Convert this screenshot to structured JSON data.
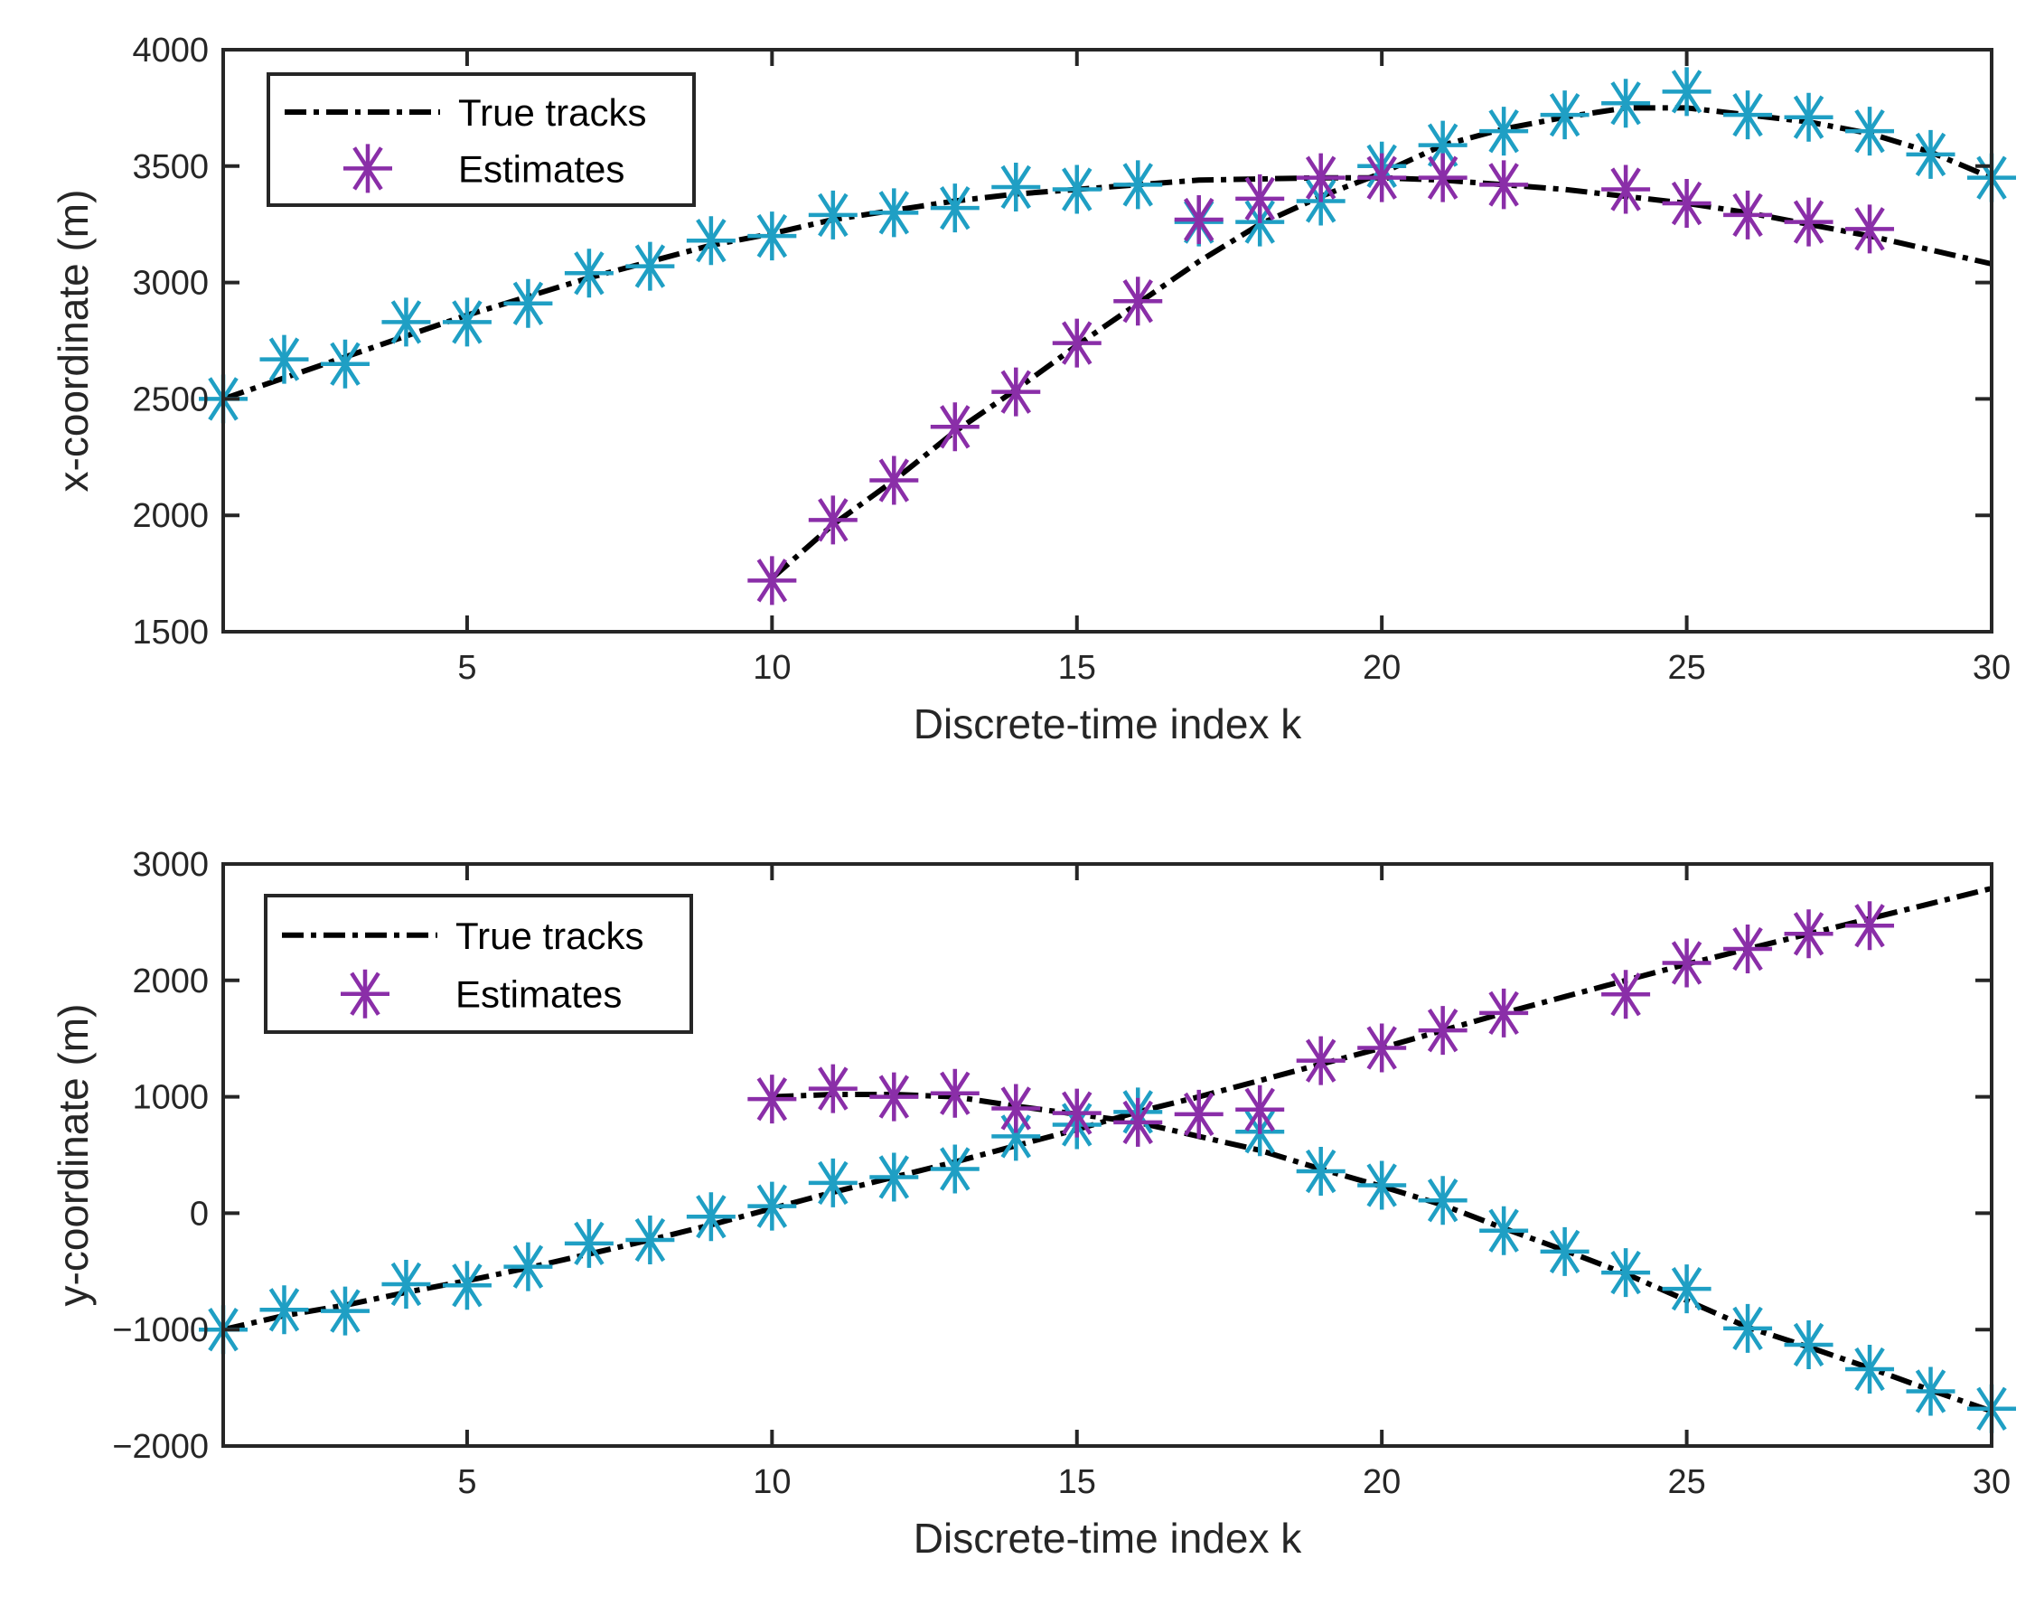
{
  "chart_data": [
    {
      "type": "line",
      "title": "",
      "xlabel": "Discrete-time index k",
      "ylabel": "x-coordinate (m)",
      "xlim": [
        1,
        30
      ],
      "ylim": [
        1500,
        4000
      ],
      "xticks": [
        5,
        10,
        15,
        20,
        25,
        30
      ],
      "yticks": [
        1500,
        2000,
        2500,
        3000,
        3500,
        4000
      ],
      "ytick_labels": [
        "1500",
        "2000",
        "2500",
        "3000",
        "3500",
        "4000"
      ],
      "xtick_labels": [
        "5",
        "10",
        "15",
        "20",
        "25",
        "30"
      ],
      "grid": false,
      "legend": {
        "placement": "top-left",
        "entries": [
          "True tracks",
          "Estimates"
        ]
      },
      "true_tracks": [
        {
          "k": [
            1,
            2,
            3,
            4,
            5,
            6,
            7,
            8,
            9,
            10,
            11,
            12,
            13,
            14,
            15,
            16,
            17,
            18,
            19,
            20,
            21,
            22,
            23,
            24,
            25,
            26,
            27,
            28,
            29,
            30
          ],
          "values": [
            2500,
            2590,
            2680,
            2770,
            2860,
            2940,
            3020,
            3090,
            3160,
            3210,
            3270,
            3310,
            3350,
            3380,
            3400,
            3420,
            3440,
            3445,
            3450,
            3450,
            3440,
            3420,
            3400,
            3370,
            3340,
            3300,
            3250,
            3200,
            3140,
            3080
          ]
        },
        {
          "k": [
            10,
            11,
            12,
            13,
            14,
            15,
            16,
            17,
            18,
            19,
            20,
            21,
            22,
            23,
            24,
            25,
            26,
            27,
            28,
            29,
            30
          ],
          "values": [
            1730,
            1960,
            2150,
            2360,
            2540,
            2730,
            2910,
            3090,
            3250,
            3370,
            3470,
            3590,
            3660,
            3710,
            3750,
            3750,
            3720,
            3690,
            3640,
            3560,
            3450
          ]
        }
      ],
      "estimates": [
        {
          "color": "#1f9fc4",
          "k": [
            1,
            2,
            3,
            4,
            5,
            6,
            7,
            8,
            9,
            10,
            11,
            12,
            13,
            14,
            15,
            16,
            17,
            18,
            19,
            20,
            21,
            22,
            23,
            24,
            25,
            26,
            27,
            28,
            29,
            30
          ],
          "values": [
            2500,
            2670,
            2650,
            2830,
            2830,
            2910,
            3040,
            3070,
            3180,
            3200,
            3290,
            3300,
            3320,
            3410,
            3400,
            3420,
            3260,
            3260,
            3350,
            3500,
            3590,
            3650,
            3720,
            3770,
            3820,
            3720,
            3710,
            3650,
            3550,
            3450
          ]
        },
        {
          "color": "#8a2ea8",
          "k": [
            10,
            11,
            12,
            13,
            14,
            15,
            16,
            17,
            18,
            19,
            20,
            21,
            22,
            24,
            25,
            26,
            27,
            28
          ],
          "values": [
            1720,
            1980,
            2150,
            2380,
            2530,
            2740,
            2920,
            3270,
            3360,
            3450,
            3450,
            3450,
            3420,
            3400,
            3340,
            3290,
            3260,
            3230
          ]
        }
      ]
    },
    {
      "type": "line",
      "title": "",
      "xlabel": "Discrete-time index k",
      "ylabel": "y-coordinate (m)",
      "xlim": [
        1,
        30
      ],
      "ylim": [
        -2000,
        3000
      ],
      "xticks": [
        5,
        10,
        15,
        20,
        25,
        30
      ],
      "yticks": [
        -2000,
        -1000,
        0,
        1000,
        2000,
        3000
      ],
      "ytick_labels": [
        "−2000",
        "−1000",
        "0",
        "1000",
        "2000",
        "3000"
      ],
      "xtick_labels": [
        "5",
        "10",
        "15",
        "20",
        "25",
        "30"
      ],
      "grid": false,
      "legend": {
        "placement": "top-left",
        "entries": [
          "True tracks",
          "Estimates"
        ]
      },
      "true_tracks": [
        {
          "k": [
            1,
            2,
            3,
            4,
            5,
            6,
            7,
            8,
            9,
            10,
            11,
            12,
            13,
            14,
            15,
            16,
            17,
            18,
            19,
            20,
            21,
            22,
            23,
            24,
            25,
            26,
            27,
            28,
            29,
            30
          ],
          "values": [
            -1000,
            -880,
            -790,
            -680,
            -580,
            -470,
            -350,
            -230,
            -100,
            40,
            180,
            310,
            440,
            580,
            720,
            870,
            1000,
            1140,
            1280,
            1420,
            1570,
            1720,
            1860,
            2000,
            2140,
            2270,
            2400,
            2530,
            2660,
            2790
          ]
        },
        {
          "k": [
            10,
            11,
            12,
            13,
            14,
            15,
            16,
            17,
            18,
            19,
            20,
            21,
            22,
            23,
            24,
            25,
            26,
            27,
            28,
            29,
            30
          ],
          "values": [
            1000,
            1020,
            1020,
            1000,
            920,
            850,
            780,
            660,
            540,
            380,
            230,
            70,
            -130,
            -320,
            -520,
            -750,
            -980,
            -1150,
            -1330,
            -1520,
            -1700
          ]
        }
      ],
      "estimates": [
        {
          "color": "#1f9fc4",
          "k": [
            1,
            2,
            3,
            4,
            5,
            6,
            7,
            8,
            9,
            10,
            11,
            12,
            13,
            14,
            15,
            16,
            18,
            19,
            20,
            21,
            22,
            23,
            24,
            25,
            26,
            27,
            28,
            29,
            30
          ],
          "values": [
            -1000,
            -830,
            -840,
            -610,
            -620,
            -460,
            -260,
            -230,
            -30,
            60,
            260,
            310,
            380,
            660,
            760,
            870,
            700,
            360,
            240,
            110,
            -150,
            -330,
            -510,
            -650,
            -990,
            -1130,
            -1340,
            -1530,
            -1680
          ]
        },
        {
          "color": "#8a2ea8",
          "k": [
            10,
            11,
            12,
            13,
            14,
            15,
            16,
            17,
            18,
            19,
            20,
            21,
            22,
            24,
            25,
            26,
            27,
            28
          ],
          "values": [
            980,
            1070,
            1000,
            1030,
            900,
            860,
            780,
            850,
            890,
            1310,
            1420,
            1570,
            1720,
            1880,
            2150,
            2270,
            2400,
            2470
          ]
        }
      ]
    }
  ]
}
